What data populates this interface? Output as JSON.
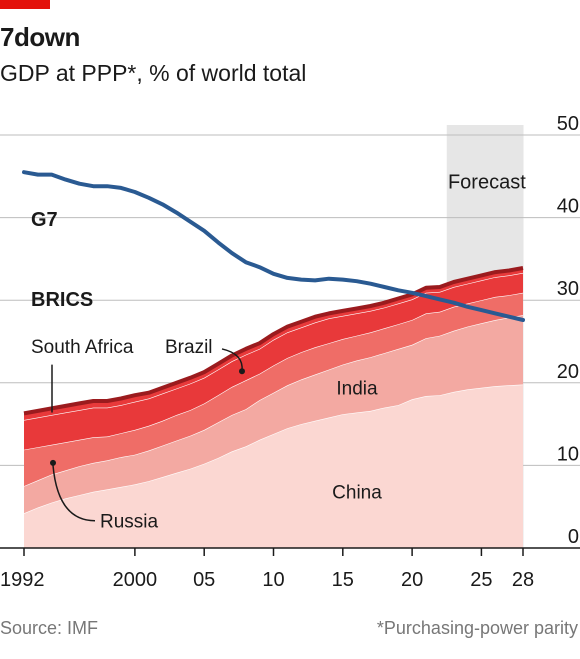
{
  "header": {
    "title": "7down",
    "subtitle": "GDP at PPP*, % of world total"
  },
  "footer": {
    "source": "Source: IMF",
    "footnote": "*Purchasing-power parity"
  },
  "colors": {
    "accent": "#e3120b",
    "g7": "#2a5a92",
    "brics_label": "#c2141b",
    "brics_top": "#9b1b1e",
    "brazil": "#e8393a",
    "south_africa": "#e8393a",
    "russia": "#ef6d67",
    "india": "#f3a9a2",
    "china": "#fbd7d2",
    "forecast": "#e6e6e6",
    "grid": "#bdbdbd"
  },
  "chart_data": {
    "type": "area",
    "x": [
      1992,
      1993,
      1994,
      1995,
      1996,
      1997,
      1998,
      1999,
      2000,
      2001,
      2002,
      2003,
      2004,
      2005,
      2006,
      2007,
      2008,
      2009,
      2010,
      2011,
      2012,
      2013,
      2014,
      2015,
      2016,
      2017,
      2018,
      2019,
      2020,
      2021,
      2022,
      2023,
      2024,
      2025,
      2026,
      2027,
      2028
    ],
    "x_tick_labels": [
      "1992",
      "2000",
      "05",
      "10",
      "15",
      "20",
      "25",
      "28"
    ],
    "x_tick_values": [
      1992,
      2000,
      2005,
      2010,
      2015,
      2020,
      2025,
      2028
    ],
    "ylim": [
      0,
      50
    ],
    "y_ticks": [
      0,
      10,
      20,
      30,
      40,
      50
    ],
    "forecast_start": 2023,
    "forecast_label": "Forecast",
    "stack_order": [
      "China",
      "India",
      "Russia",
      "Brazil",
      "South Africa"
    ],
    "series": [
      {
        "name": "China",
        "values": [
          4.2,
          4.9,
          5.5,
          6.0,
          6.4,
          6.8,
          7.1,
          7.4,
          7.7,
          8.1,
          8.6,
          9.1,
          9.6,
          10.2,
          10.9,
          11.7,
          12.3,
          13.1,
          13.8,
          14.5,
          15.0,
          15.4,
          15.8,
          16.2,
          16.4,
          16.6,
          17.0,
          17.3,
          18.0,
          18.4,
          18.5,
          18.9,
          19.2,
          19.4,
          19.6,
          19.7,
          19.8
        ]
      },
      {
        "name": "India",
        "values": [
          3.3,
          3.3,
          3.4,
          3.4,
          3.5,
          3.5,
          3.5,
          3.6,
          3.6,
          3.7,
          3.8,
          3.9,
          4.0,
          4.1,
          4.3,
          4.4,
          4.5,
          4.8,
          5.0,
          5.2,
          5.4,
          5.6,
          5.8,
          6.0,
          6.3,
          6.5,
          6.6,
          6.8,
          6.6,
          7.0,
          7.2,
          7.4,
          7.6,
          7.8,
          8.0,
          8.2,
          8.4
        ]
      },
      {
        "name": "Russia",
        "values": [
          4.4,
          4.0,
          3.6,
          3.4,
          3.2,
          3.1,
          2.9,
          2.9,
          3.0,
          3.0,
          3.0,
          3.1,
          3.1,
          3.2,
          3.3,
          3.4,
          3.5,
          3.2,
          3.3,
          3.3,
          3.3,
          3.3,
          3.2,
          3.1,
          3.0,
          3.0,
          3.0,
          3.0,
          3.0,
          3.0,
          2.9,
          2.9,
          2.8,
          2.8,
          2.8,
          2.7,
          2.7
        ]
      },
      {
        "name": "Brazil",
        "values": [
          3.6,
          3.6,
          3.6,
          3.6,
          3.6,
          3.6,
          3.5,
          3.4,
          3.4,
          3.3,
          3.3,
          3.2,
          3.2,
          3.1,
          3.1,
          3.1,
          3.1,
          3.0,
          3.1,
          3.1,
          3.0,
          3.0,
          3.0,
          2.8,
          2.7,
          2.6,
          2.5,
          2.5,
          2.5,
          2.5,
          2.4,
          2.4,
          2.4,
          2.4,
          2.4,
          2.4,
          2.4
        ]
      },
      {
        "name": "South Africa",
        "values": [
          0.8,
          0.8,
          0.8,
          0.8,
          0.8,
          0.8,
          0.8,
          0.8,
          0.8,
          0.7,
          0.7,
          0.7,
          0.7,
          0.7,
          0.7,
          0.7,
          0.7,
          0.7,
          0.7,
          0.7,
          0.7,
          0.7,
          0.6,
          0.6,
          0.6,
          0.6,
          0.6,
          0.6,
          0.6,
          0.6,
          0.6,
          0.6,
          0.6,
          0.6,
          0.6,
          0.6,
          0.6
        ]
      },
      {
        "name": "G7",
        "values": [
          45.5,
          45.2,
          45.2,
          44.6,
          44.1,
          43.8,
          43.8,
          43.6,
          43.1,
          42.4,
          41.6,
          40.6,
          39.5,
          38.4,
          37.0,
          35.7,
          34.6,
          34.0,
          33.2,
          32.7,
          32.5,
          32.4,
          32.6,
          32.5,
          32.3,
          32.0,
          31.6,
          31.2,
          30.9,
          30.5,
          30.1,
          29.7,
          29.2,
          28.8,
          28.4,
          28.0,
          27.6
        ]
      }
    ],
    "labels": {
      "g7": "G7",
      "brics": "BRICS",
      "south_africa": "South Africa",
      "brazil": "Brazil",
      "india": "India",
      "china": "China",
      "russia": "Russia"
    }
  }
}
